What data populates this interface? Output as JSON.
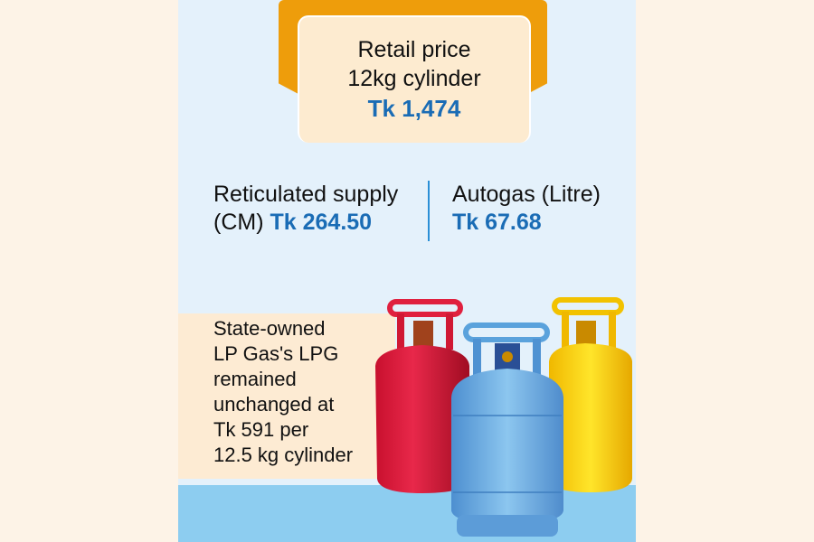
{
  "retail": {
    "line1": "Retail price",
    "line2": "12kg cylinder",
    "price": "Tk 1,474"
  },
  "reticulated": {
    "label": "Reticulated supply",
    "unit": "(CM)",
    "price": "Tk 264.50"
  },
  "autogas": {
    "label": "Autogas (Litre)",
    "price": "Tk 67.68"
  },
  "note": {
    "lines": [
      "State-owned",
      "LP Gas's LPG",
      "remained",
      "unchanged at",
      "Tk 591 per",
      "12.5 kg cylinder"
    ]
  },
  "colors": {
    "accent_orange": "#ee9d0b",
    "price_blue": "#1a6cb5",
    "panel_bg": "#e4f1fb",
    "cream": "#fdebd0"
  },
  "illustration": {
    "icons": [
      "red-gas-cylinder-icon",
      "blue-gas-cylinder-icon",
      "yellow-gas-cylinder-icon"
    ]
  }
}
